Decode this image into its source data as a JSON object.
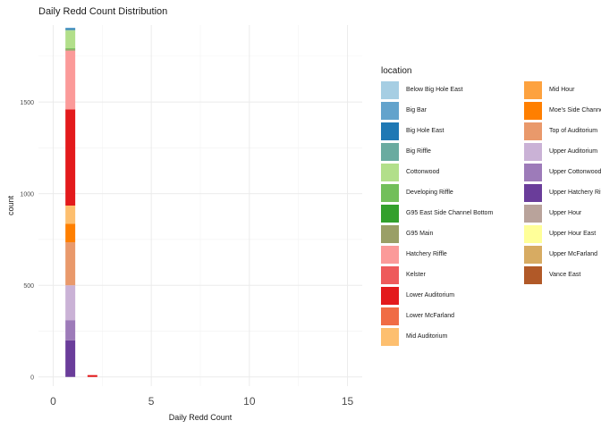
{
  "title": "Daily Redd Count Distribution",
  "chart_data": {
    "type": "bar",
    "subtype": "stacked-histogram",
    "title": "Daily Redd Count Distribution",
    "xlabel": "Daily Redd Count",
    "ylabel": "count",
    "xlim": [
      -0.75,
      15.75
    ],
    "ylim": [
      -50,
      1920
    ],
    "x_ticks": [
      0,
      5,
      10,
      15
    ],
    "y_ticks": [
      0,
      500,
      1000,
      1500
    ],
    "grid": true,
    "legend_position": "right",
    "legend_title": "location",
    "bins": [
      {
        "x_from": 0.625,
        "x_to": 1.125,
        "stack": [
          {
            "location": "Upper Hatchery Riffle",
            "count": 200
          },
          {
            "location": "Upper Cottonwood",
            "count": 110
          },
          {
            "location": "Upper Auditorium",
            "count": 190
          },
          {
            "location": "Top of Auditorium",
            "count": 235
          },
          {
            "location": "Moe's Side Channel",
            "count": 100
          },
          {
            "location": "Mid Auditorium",
            "count": 100
          },
          {
            "location": "Lower Auditorium",
            "count": 525
          },
          {
            "location": "Hatchery Riffle",
            "count": 320
          },
          {
            "location": "G95 Main",
            "count": 8
          },
          {
            "location": "Developing Riffle",
            "count": 5
          },
          {
            "location": "Cottonwood",
            "count": 97
          },
          {
            "location": "Big Riffle",
            "count": 5
          },
          {
            "location": "Big Hole East",
            "count": 5
          },
          {
            "location": "Big Bar",
            "count": 5
          }
        ]
      },
      {
        "x_from": 1.75,
        "x_to": 2.25,
        "stack": [
          {
            "location": "Lower Auditorium",
            "count": 10
          }
        ]
      }
    ]
  },
  "legend": {
    "title": "location",
    "columns": [
      [
        {
          "label": "Below Big Hole East",
          "color": "#a6cee3"
        },
        {
          "label": "Big Bar",
          "color": "#63a3cc"
        },
        {
          "label": "Big Hole East",
          "color": "#1f78b4"
        },
        {
          "label": "Big Riffle",
          "color": "#6aaba0"
        },
        {
          "label": "Cottonwood",
          "color": "#b2df8a"
        },
        {
          "label": "Developing Riffle",
          "color": "#72bf5a"
        },
        {
          "label": "G95 East Side Channel Bottom",
          "color": "#33a02c"
        },
        {
          "label": "G95 Main",
          "color": "#9a9f66"
        },
        {
          "label": "Hatchery Riffle",
          "color": "#fb9a99"
        },
        {
          "label": "Kelster",
          "color": "#ee5a5b"
        },
        {
          "label": "Lower Auditorium",
          "color": "#e31a1c"
        },
        {
          "label": "Lower McFarland",
          "color": "#f06c45"
        },
        {
          "label": "Mid Auditorium",
          "color": "#fdbf6f"
        }
      ],
      [
        {
          "label": "Mid Hour",
          "color": "#fda23f"
        },
        {
          "label": "Moe's Side Channel",
          "color": "#ff7f00"
        },
        {
          "label": "Top of Auditorium",
          "color": "#e9996b"
        },
        {
          "label": "Upper Auditorium",
          "color": "#cab2d6"
        },
        {
          "label": "Upper Cottonwood",
          "color": "#9d7bb9"
        },
        {
          "label": "Upper Hatchery Riffle",
          "color": "#6a3d9a"
        },
        {
          "label": "Upper Hour",
          "color": "#b9a39b"
        },
        {
          "label": "Upper Hour East",
          "color": "#ffff99"
        },
        {
          "label": "Upper McFarland",
          "color": "#d7ab62"
        },
        {
          "label": "Vance East",
          "color": "#b15928"
        }
      ]
    ]
  }
}
